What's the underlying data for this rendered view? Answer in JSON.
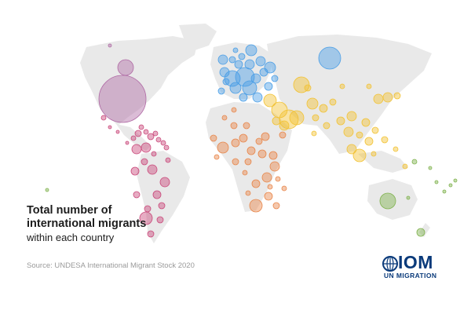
{
  "caption": {
    "line1": "Total number of",
    "line2": "international migrants",
    "line3": "within each country"
  },
  "source": "Source: UNDESA International Migrant Stock 2020",
  "logo": {
    "word": "IOM",
    "subtitle": "UN MIGRATION",
    "color": "#0a3a7a"
  },
  "region_colors": {
    "americas": "#c9487a",
    "north_america": "#b06aa5",
    "europe": "#4a9ee6",
    "africa": "#e8864a",
    "asia": "#f2c232",
    "oceania": "#7fb24d",
    "land": "#e9e9e9"
  }
}
